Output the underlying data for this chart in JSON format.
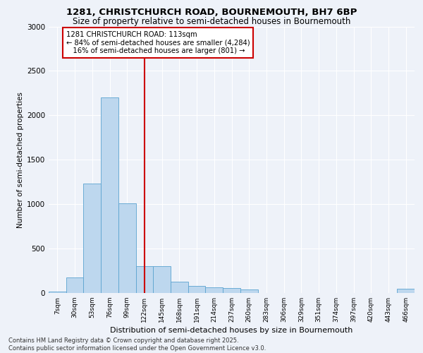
{
  "title_line1": "1281, CHRISTCHURCH ROAD, BOURNEMOUTH, BH7 6BP",
  "title_line2": "Size of property relative to semi-detached houses in Bournemouth",
  "xlabel": "Distribution of semi-detached houses by size in Bournemouth",
  "ylabel": "Number of semi-detached properties",
  "bin_labels": [
    "7sqm",
    "30sqm",
    "53sqm",
    "76sqm",
    "99sqm",
    "122sqm",
    "145sqm",
    "168sqm",
    "191sqm",
    "214sqm",
    "237sqm",
    "260sqm",
    "283sqm",
    "306sqm",
    "329sqm",
    "351sqm",
    "374sqm",
    "397sqm",
    "420sqm",
    "443sqm",
    "466sqm"
  ],
  "bar_values": [
    15,
    175,
    1230,
    2200,
    1010,
    300,
    300,
    130,
    80,
    65,
    55,
    40,
    0,
    0,
    0,
    0,
    0,
    0,
    0,
    0,
    50
  ],
  "bar_color": "#bdd7ee",
  "bar_edge_color": "#5ba3d0",
  "vline_x": 5.0,
  "annotation_text": "1281 CHRISTCHURCH ROAD: 113sqm\n← 84% of semi-detached houses are smaller (4,284)\n   16% of semi-detached houses are larger (801) →",
  "annotation_box_color": "#ffffff",
  "annotation_box_edge_color": "#cc0000",
  "ylim": [
    0,
    3000
  ],
  "yticks": [
    0,
    500,
    1000,
    1500,
    2000,
    2500,
    3000
  ],
  "footer_line1": "Contains HM Land Registry data © Crown copyright and database right 2025.",
  "footer_line2": "Contains public sector information licensed under the Open Government Licence v3.0.",
  "background_color": "#eef2f9",
  "grid_color": "#ffffff",
  "vline_color": "#cc0000"
}
